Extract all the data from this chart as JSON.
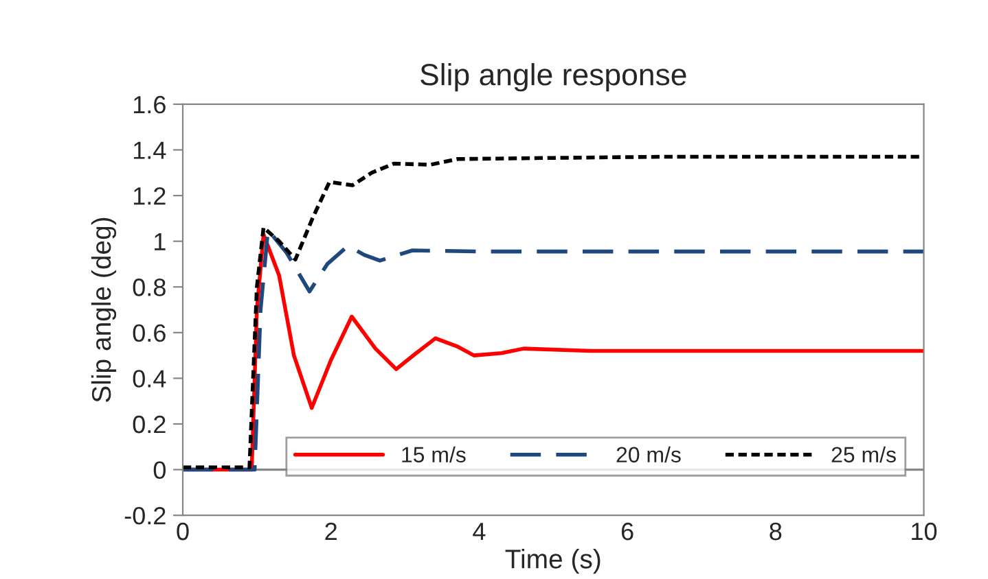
{
  "chart_data": {
    "type": "line",
    "title": "Slip angle response",
    "xlabel": "Time (s)",
    "ylabel": "Slip angle (deg)",
    "xlim": [
      0,
      10
    ],
    "xticks": [
      0,
      2,
      4,
      6,
      8,
      10
    ],
    "ylim": [
      -0.2,
      1.6
    ],
    "yticks": [
      -0.2,
      0,
      0.2,
      0.4,
      0.6,
      0.8,
      1,
      1.2,
      1.4,
      1.6
    ],
    "grid": false,
    "legend": "bottom right",
    "marker": "none",
    "ref_lines": [
      {
        "axis": "y",
        "value": 0,
        "color": "#868686"
      }
    ],
    "series": [
      {
        "name": "15 m/s",
        "color": "#ff0000",
        "line_style": "solid",
        "x": [
          0,
          0.93,
          1.0,
          1.09,
          1.3,
          1.5,
          1.74,
          2.0,
          2.28,
          2.6,
          2.88,
          3.15,
          3.41,
          3.7,
          3.93,
          4.3,
          4.6,
          5.5,
          7,
          8.5,
          10
        ],
        "values": [
          0,
          0,
          0.7,
          1.03,
          0.85,
          0.5,
          0.27,
          0.48,
          0.67,
          0.53,
          0.44,
          0.51,
          0.575,
          0.54,
          0.5,
          0.51,
          0.53,
          0.52,
          0.52,
          0.52,
          0.52
        ]
      },
      {
        "name": "20 m/s",
        "color": "#1f497d",
        "line_style": "dashed",
        "x": [
          0,
          0.97,
          1.05,
          1.15,
          1.4,
          1.71,
          1.95,
          2.23,
          2.45,
          2.66,
          3.1,
          4,
          5,
          7,
          8.5,
          10
        ],
        "values": [
          0,
          0,
          0.7,
          1.05,
          0.95,
          0.78,
          0.9,
          0.98,
          0.94,
          0.915,
          0.96,
          0.955,
          0.955,
          0.955,
          0.955,
          0.955
        ]
      },
      {
        "name": "25 m/s",
        "color": "#000000",
        "line_style": "dotted",
        "x": [
          0,
          0.9,
          1.0,
          1.09,
          1.3,
          1.52,
          1.75,
          1.98,
          2.29,
          2.55,
          2.85,
          3.34,
          3.71,
          5,
          6.5,
          8,
          10
        ],
        "values": [
          0.01,
          0.01,
          0.8,
          1.06,
          1.0,
          0.92,
          1.1,
          1.26,
          1.245,
          1.3,
          1.34,
          1.335,
          1.36,
          1.365,
          1.37,
          1.37,
          1.37
        ]
      }
    ]
  }
}
